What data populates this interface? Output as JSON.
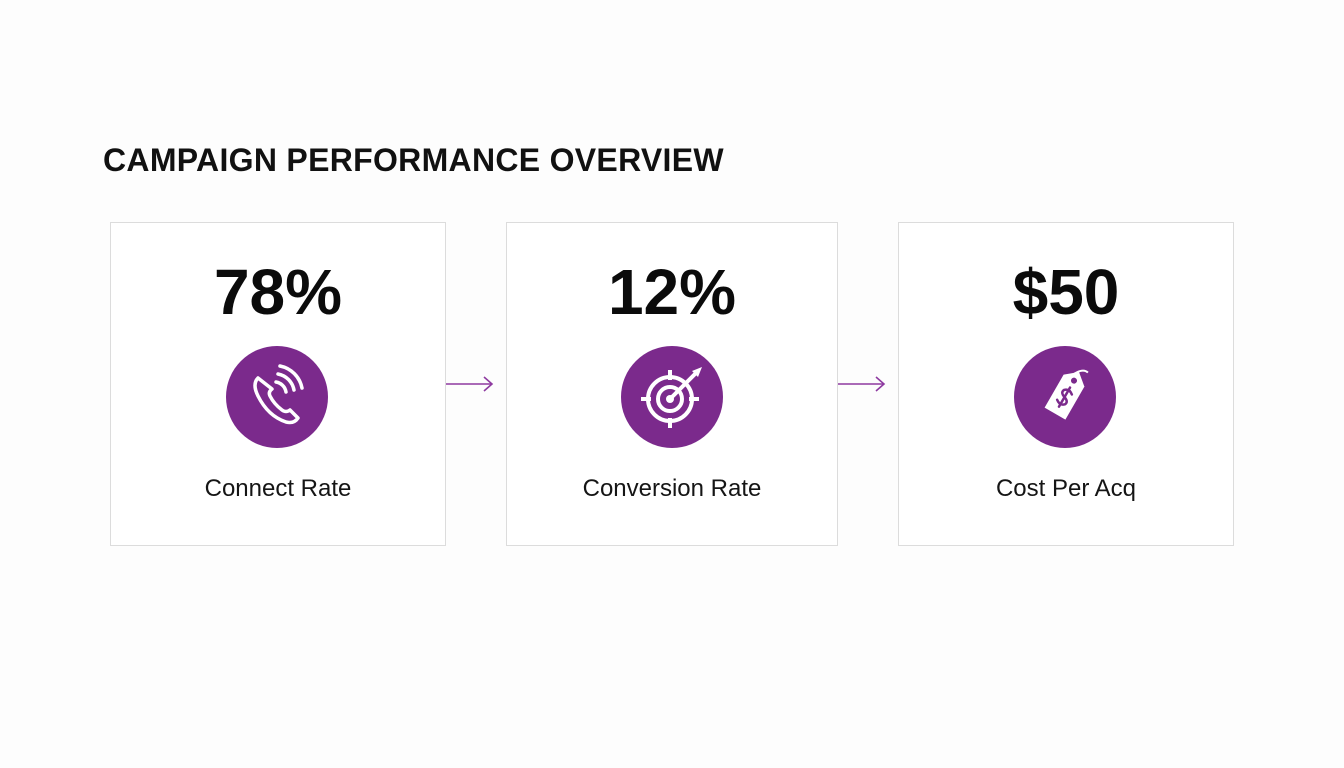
{
  "header": {
    "title": "CAMPAIGN PERFORMANCE OVERVIEW"
  },
  "cards": [
    {
      "value": "78%",
      "label": "Connect Rate"
    },
    {
      "value": "12%",
      "label": "Conversion Rate"
    },
    {
      "value": "$50",
      "label": "Cost Per Acq"
    }
  ]
}
